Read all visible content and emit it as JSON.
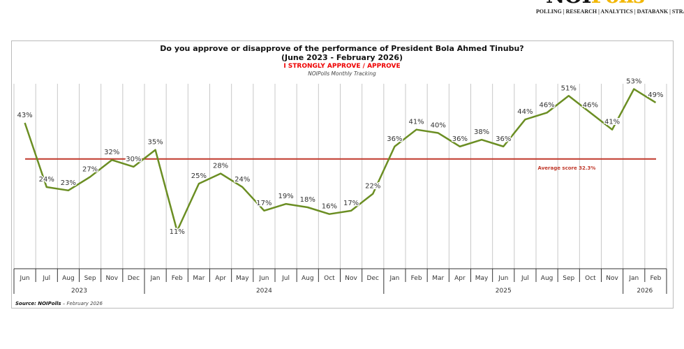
{
  "logo": {
    "text": "NOIPolls",
    "tagline": "POLLING | RESEARCH | ANALYTICS | DATABANK | STRATEGY"
  },
  "chart_data": {
    "type": "line",
    "title": "Do you approve or disapprove of the performance of President Bola Ahmed Tinubu?",
    "subtitle": "(June 2023 - February 2026)",
    "series_label": "I STRONGLY APPROVE / APPROVE",
    "tracking": "NOIPolls Monthly Tracking",
    "categories": [
      "Jun",
      "Jul",
      "Aug",
      "Sep",
      "Nov",
      "Dec",
      "Jan",
      "Feb",
      "Mar",
      "Apr",
      "May",
      "Jun",
      "Jul",
      "Aug",
      "Oct",
      "Nov",
      "Dec",
      "Jan",
      "Feb",
      "Mar",
      "Apr",
      "May",
      "Jun",
      "Jul",
      "Aug",
      "Sep",
      "Oct",
      "Nov",
      "Jan",
      "Feb"
    ],
    "years": [
      {
        "label": "2023",
        "count": 6
      },
      {
        "label": "2024",
        "count": 11
      },
      {
        "label": "2025",
        "count": 11
      },
      {
        "label": "2026",
        "count": 2
      }
    ],
    "series": [
      {
        "values": [
          43,
          24,
          23,
          27,
          32,
          30,
          35,
          11,
          25,
          28,
          24,
          17,
          19,
          18,
          16,
          17,
          22,
          36,
          41,
          40,
          36,
          38,
          36,
          44,
          46,
          51,
          46,
          41,
          53,
          49
        ],
        "color": "#6b8e23"
      }
    ],
    "value_suffix": "%",
    "average": {
      "value": 32.3,
      "label": "Average score 32.3%",
      "color": "#c0392b"
    },
    "grid": "vertical"
  },
  "source": {
    "label": "Source:",
    "brand": "NOIPolls",
    "text": " – February 2026"
  }
}
